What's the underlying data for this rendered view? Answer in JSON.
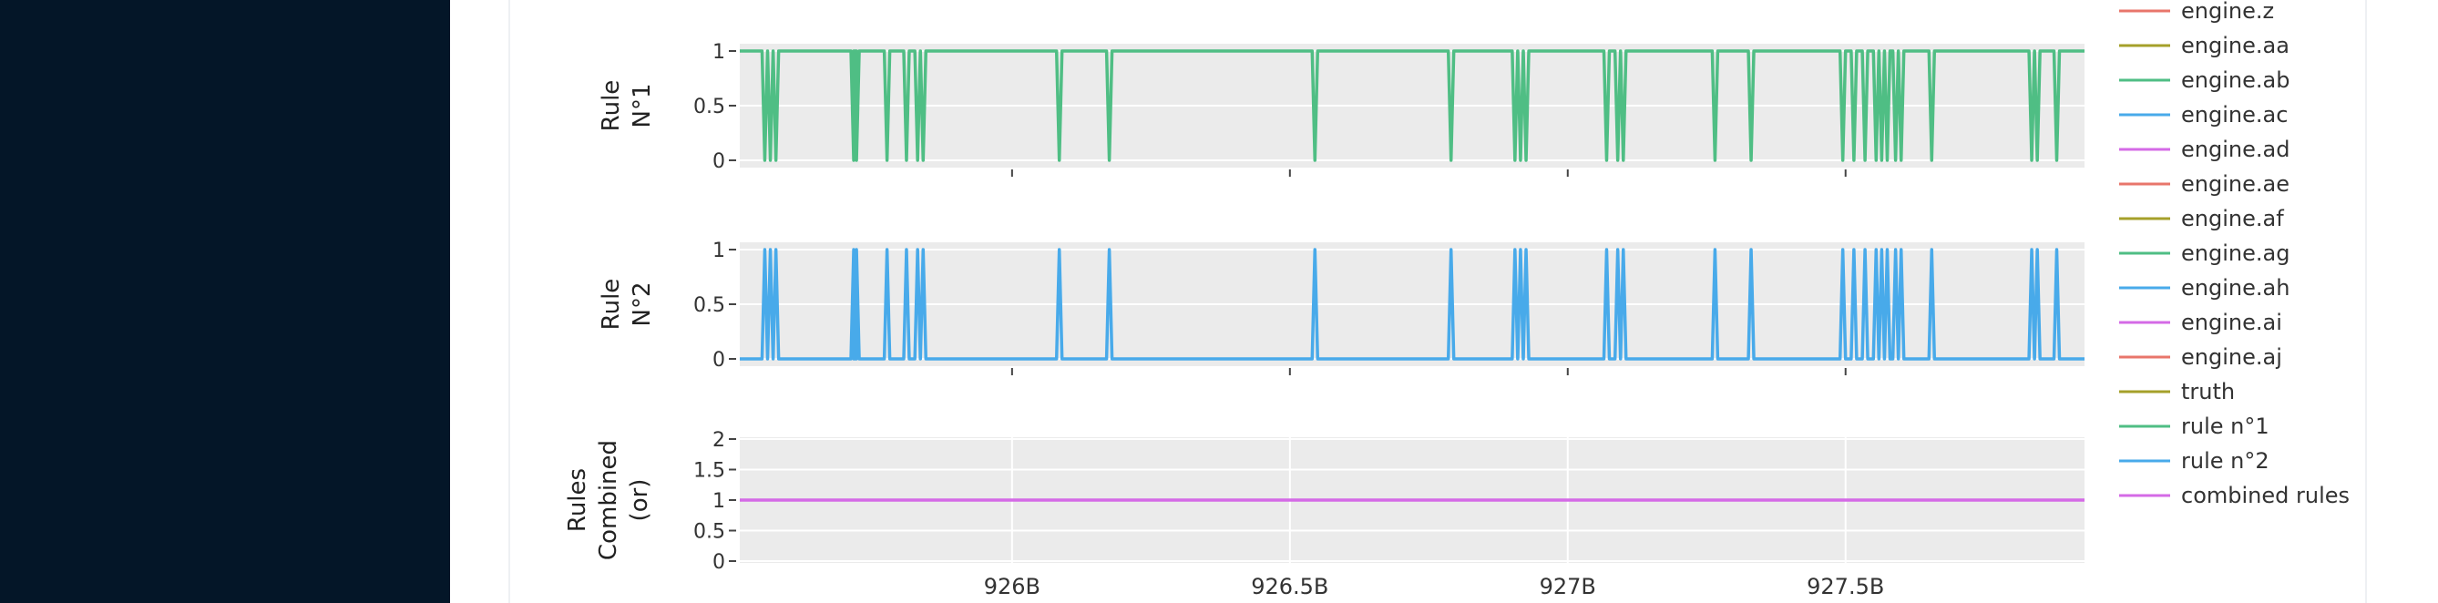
{
  "chart_data": {
    "type": "line",
    "panels": [
      {
        "id": "rule1",
        "ylabel_lines": [
          "Rule",
          "N°1"
        ],
        "ylim": [
          0,
          1
        ],
        "yticks": [
          0,
          0.5,
          1
        ],
        "ytick_labels": [
          "0",
          "0.5",
          "1"
        ],
        "series": "rule n°1",
        "color": "#4fbe84",
        "base": 1
      },
      {
        "id": "rule2",
        "ylabel_lines": [
          "Rule",
          "N°2"
        ],
        "ylim": [
          0,
          1
        ],
        "yticks": [
          0,
          0.5,
          1
        ],
        "ytick_labels": [
          "0",
          "0.5",
          "1"
        ],
        "series": "rule n°2",
        "color": "#48aaea",
        "base": 0
      },
      {
        "id": "combined",
        "ylabel_lines": [
          "Rules",
          "Combined",
          "(or)"
        ],
        "ylim": [
          0,
          2
        ],
        "yticks": [
          0,
          0.5,
          1,
          1.5,
          2
        ],
        "ytick_labels": [
          "0",
          "0.5",
          "1",
          "1.5",
          "2"
        ],
        "series": "combined rules",
        "color": "#d46ae6",
        "constant": 1
      }
    ],
    "xlim": [
      925.51,
      927.93
    ],
    "xticks": [
      926,
      926.5,
      927,
      927.5
    ],
    "xtick_labels": [
      "926B",
      "926.5B",
      "927B",
      "927.5B"
    ],
    "spike_x": [
      925.555,
      925.565,
      925.575,
      925.715,
      925.72,
      925.775,
      925.81,
      925.83,
      925.84,
      926.085,
      926.175,
      926.545,
      926.79,
      926.905,
      926.915,
      926.925,
      927.07,
      927.09,
      927.1,
      927.265,
      927.33,
      927.495,
      927.515,
      927.535,
      927.555,
      927.565,
      927.575,
      927.59,
      927.6,
      927.655,
      927.835,
      927.845,
      927.88
    ],
    "legend_position": "right",
    "legend": [
      {
        "name": "engine.z",
        "color": "#e8766b"
      },
      {
        "name": "engine.aa",
        "color": "#a5a02a"
      },
      {
        "name": "engine.ab",
        "color": "#4fbe84"
      },
      {
        "name": "engine.ac",
        "color": "#48aaea"
      },
      {
        "name": "engine.ad",
        "color": "#d46ae6"
      },
      {
        "name": "engine.ae",
        "color": "#e8766b"
      },
      {
        "name": "engine.af",
        "color": "#a5a02a"
      },
      {
        "name": "engine.ag",
        "color": "#4fbe84"
      },
      {
        "name": "engine.ah",
        "color": "#48aaea"
      },
      {
        "name": "engine.ai",
        "color": "#d46ae6"
      },
      {
        "name": "engine.aj",
        "color": "#e8766b"
      },
      {
        "name": "truth",
        "color": "#a5a02a"
      },
      {
        "name": "rule n°1",
        "color": "#4fbe84"
      },
      {
        "name": "rule n°2",
        "color": "#48aaea"
      },
      {
        "name": "combined rules",
        "color": "#d46ae6"
      }
    ],
    "grid": true,
    "plot_bg": "#ebebeb",
    "grid_color": "#ffffff"
  }
}
